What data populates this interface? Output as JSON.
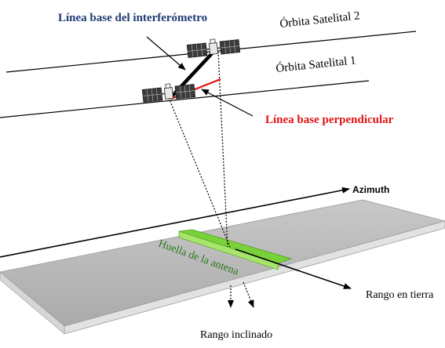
{
  "labels": {
    "baseline": "Línea base del interferómetro",
    "orbit2": "Órbita Satelital 2",
    "orbit1": "Órbita Satelital 1",
    "perp_baseline": "Línea base perpendicular",
    "azimuth": "Azimuth",
    "footprint": "Huella de la antena",
    "ground_range": "Rango en tierra",
    "slant_range": "Rango inclinado"
  },
  "colors": {
    "baseline_label": "#1f3b73",
    "perp_label": "#e01414",
    "perp_line": "#e01414",
    "footprint": "#7fd43a",
    "footprint_label": "#2a7a1a",
    "ground_strip": "#b8b8b8",
    "line": "#000000"
  },
  "icons": {
    "satellite_1": "satellite-icon",
    "satellite_2": "satellite-icon"
  }
}
